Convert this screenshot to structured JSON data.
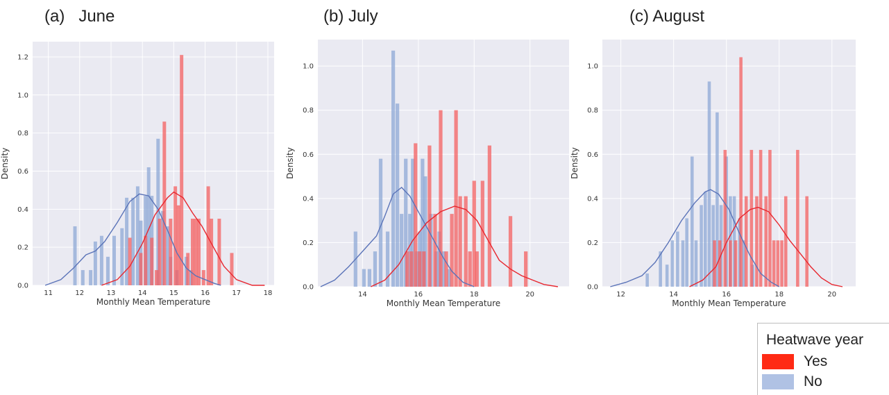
{
  "chart_data": [
    {
      "panel": "(a)   June",
      "type": "histogram-kde",
      "xlabel": "Monthly Mean Temperature",
      "ylabel": "Density",
      "xlim": [
        10.5,
        18.2
      ],
      "ylim": [
        0,
        1.28
      ],
      "xticks": [
        11,
        12,
        13,
        14,
        15,
        16,
        17,
        18
      ],
      "yticks": [
        0.0,
        0.2,
        0.4,
        0.6,
        0.8,
        1.0,
        1.2
      ],
      "bin_width": 0.11,
      "series": [
        {
          "name": "No",
          "bins": [
            [
              11.85,
              0.31
            ],
            [
              12.1,
              0.08
            ],
            [
              12.35,
              0.08
            ],
            [
              12.5,
              0.23
            ],
            [
              12.7,
              0.26
            ],
            [
              12.9,
              0.15
            ],
            [
              13.1,
              0.26
            ],
            [
              13.35,
              0.3
            ],
            [
              13.5,
              0.46
            ],
            [
              13.7,
              0.46
            ],
            [
              13.85,
              0.52
            ],
            [
              13.95,
              0.34
            ],
            [
              14.1,
              0.47
            ],
            [
              14.2,
              0.62
            ],
            [
              14.3,
              0.47
            ],
            [
              14.5,
              0.77
            ],
            [
              14.65,
              0.39
            ],
            [
              14.8,
              0.31
            ],
            [
              14.9,
              0.15
            ],
            [
              15.1,
              0.08
            ],
            [
              15.4,
              0.15
            ],
            [
              15.55,
              0.08
            ]
          ],
          "kde": [
            [
              10.9,
              0.0
            ],
            [
              11.4,
              0.03
            ],
            [
              11.8,
              0.09
            ],
            [
              12.2,
              0.16
            ],
            [
              12.5,
              0.18
            ],
            [
              12.8,
              0.23
            ],
            [
              13.2,
              0.33
            ],
            [
              13.6,
              0.44
            ],
            [
              13.9,
              0.48
            ],
            [
              14.2,
              0.47
            ],
            [
              14.5,
              0.4
            ],
            [
              14.8,
              0.29
            ],
            [
              15.1,
              0.17
            ],
            [
              15.4,
              0.09
            ],
            [
              15.7,
              0.05
            ],
            [
              16.0,
              0.03
            ],
            [
              16.3,
              0.01
            ],
            [
              16.5,
              0.0
            ]
          ]
        },
        {
          "name": "Yes",
          "bins": [
            [
              13.6,
              0.25
            ],
            [
              13.95,
              0.17
            ],
            [
              14.1,
              0.26
            ],
            [
              14.3,
              0.25
            ],
            [
              14.45,
              0.08
            ],
            [
              14.55,
              0.35
            ],
            [
              14.7,
              0.86
            ],
            [
              14.9,
              0.35
            ],
            [
              15.05,
              0.52
            ],
            [
              15.15,
              0.42
            ],
            [
              15.25,
              1.21
            ],
            [
              15.45,
              0.17
            ],
            [
              15.6,
              0.35
            ],
            [
              15.7,
              0.35
            ],
            [
              15.8,
              0.35
            ],
            [
              15.95,
              0.08
            ],
            [
              16.1,
              0.52
            ],
            [
              16.2,
              0.35
            ],
            [
              16.45,
              0.35
            ],
            [
              16.85,
              0.17
            ]
          ],
          "kde": [
            [
              12.7,
              0.0
            ],
            [
              13.2,
              0.03
            ],
            [
              13.6,
              0.1
            ],
            [
              14.0,
              0.22
            ],
            [
              14.4,
              0.37
            ],
            [
              14.8,
              0.46
            ],
            [
              15.0,
              0.49
            ],
            [
              15.3,
              0.46
            ],
            [
              15.6,
              0.38
            ],
            [
              15.9,
              0.31
            ],
            [
              16.2,
              0.22
            ],
            [
              16.6,
              0.1
            ],
            [
              17.0,
              0.03
            ],
            [
              17.5,
              0.0
            ],
            [
              17.9,
              0.0
            ]
          ]
        }
      ]
    },
    {
      "panel": "(b) July",
      "type": "histogram-kde",
      "xlabel": "Monthly Mean Temperature",
      "ylabel": "Density",
      "xlim": [
        12.4,
        21.4
      ],
      "ylim": [
        0,
        1.12
      ],
      "xticks": [
        14,
        16,
        18,
        20
      ],
      "yticks": [
        0.0,
        0.2,
        0.4,
        0.6,
        0.8,
        1.0
      ],
      "bin_width": 0.13,
      "series": [
        {
          "name": "No",
          "bins": [
            [
              13.75,
              0.25
            ],
            [
              14.05,
              0.08
            ],
            [
              14.25,
              0.08
            ],
            [
              14.45,
              0.16
            ],
            [
              14.65,
              0.58
            ],
            [
              14.9,
              0.25
            ],
            [
              15.1,
              1.07
            ],
            [
              15.25,
              0.83
            ],
            [
              15.4,
              0.33
            ],
            [
              15.55,
              0.58
            ],
            [
              15.7,
              0.33
            ],
            [
              15.8,
              0.58
            ],
            [
              15.95,
              0.16
            ],
            [
              16.05,
              0.25
            ],
            [
              16.15,
              0.58
            ],
            [
              16.25,
              0.5
            ],
            [
              16.45,
              0.33
            ],
            [
              16.65,
              0.16
            ],
            [
              16.75,
              0.25
            ],
            [
              16.9,
              0.16
            ],
            [
              17.1,
              0.08
            ]
          ],
          "kde": [
            [
              12.5,
              0.0
            ],
            [
              13.0,
              0.03
            ],
            [
              13.5,
              0.09
            ],
            [
              14.0,
              0.16
            ],
            [
              14.5,
              0.23
            ],
            [
              14.8,
              0.32
            ],
            [
              15.1,
              0.42
            ],
            [
              15.4,
              0.45
            ],
            [
              15.7,
              0.41
            ],
            [
              16.0,
              0.34
            ],
            [
              16.3,
              0.27
            ],
            [
              16.6,
              0.2
            ],
            [
              16.9,
              0.13
            ],
            [
              17.2,
              0.07
            ],
            [
              17.6,
              0.02
            ],
            [
              18.0,
              0.0
            ]
          ]
        },
        {
          "name": "Yes",
          "bins": [
            [
              15.6,
              0.16
            ],
            [
              15.75,
              0.16
            ],
            [
              15.9,
              0.65
            ],
            [
              16.05,
              0.16
            ],
            [
              16.2,
              0.16
            ],
            [
              16.4,
              0.64
            ],
            [
              16.6,
              0.33
            ],
            [
              16.8,
              0.8
            ],
            [
              17.0,
              0.16
            ],
            [
              17.2,
              0.33
            ],
            [
              17.35,
              0.8
            ],
            [
              17.5,
              0.41
            ],
            [
              17.7,
              0.41
            ],
            [
              17.85,
              0.16
            ],
            [
              18.0,
              0.48
            ],
            [
              18.1,
              0.16
            ],
            [
              18.3,
              0.48
            ],
            [
              18.55,
              0.64
            ],
            [
              19.3,
              0.32
            ],
            [
              19.85,
              0.16
            ]
          ],
          "kde": [
            [
              14.3,
              0.0
            ],
            [
              14.8,
              0.03
            ],
            [
              15.3,
              0.1
            ],
            [
              15.8,
              0.21
            ],
            [
              16.3,
              0.29
            ],
            [
              16.8,
              0.34
            ],
            [
              17.3,
              0.365
            ],
            [
              17.7,
              0.35
            ],
            [
              18.1,
              0.3
            ],
            [
              18.5,
              0.21
            ],
            [
              18.9,
              0.12
            ],
            [
              19.3,
              0.08
            ],
            [
              19.7,
              0.05
            ],
            [
              20.1,
              0.03
            ],
            [
              20.5,
              0.01
            ],
            [
              21.0,
              0.0
            ]
          ]
        }
      ]
    },
    {
      "panel": "(c) August",
      "type": "histogram-kde",
      "xlabel": "Monthly Mean Temperature",
      "ylabel": "Density",
      "xlim": [
        11.3,
        20.9
      ],
      "ylim": [
        0,
        1.12
      ],
      "xticks": [
        12,
        14,
        16,
        18,
        20
      ],
      "yticks": [
        0.0,
        0.2,
        0.4,
        0.6,
        0.8,
        1.0
      ],
      "bin_width": 0.12,
      "series": [
        {
          "name": "No",
          "bins": [
            [
              13.0,
              0.06
            ],
            [
              13.5,
              0.16
            ],
            [
              13.75,
              0.1
            ],
            [
              13.95,
              0.21
            ],
            [
              14.15,
              0.25
            ],
            [
              14.35,
              0.21
            ],
            [
              14.5,
              0.31
            ],
            [
              14.7,
              0.59
            ],
            [
              14.85,
              0.21
            ],
            [
              15.05,
              0.37
            ],
            [
              15.2,
              0.43
            ],
            [
              15.35,
              0.93
            ],
            [
              15.5,
              0.37
            ],
            [
              15.65,
              0.79
            ],
            [
              15.8,
              0.37
            ],
            [
              16.0,
              0.59
            ],
            [
              16.15,
              0.41
            ],
            [
              16.3,
              0.41
            ],
            [
              16.5,
              0.31
            ],
            [
              16.65,
              0.21
            ],
            [
              17.0,
              0.1
            ]
          ],
          "kde": [
            [
              11.6,
              0.0
            ],
            [
              12.2,
              0.02
            ],
            [
              12.8,
              0.05
            ],
            [
              13.3,
              0.11
            ],
            [
              13.8,
              0.2
            ],
            [
              14.3,
              0.3
            ],
            [
              14.8,
              0.38
            ],
            [
              15.2,
              0.43
            ],
            [
              15.4,
              0.44
            ],
            [
              15.7,
              0.42
            ],
            [
              16.1,
              0.35
            ],
            [
              16.5,
              0.24
            ],
            [
              16.9,
              0.14
            ],
            [
              17.3,
              0.06
            ],
            [
              17.7,
              0.02
            ],
            [
              18.0,
              0.0
            ]
          ]
        },
        {
          "name": "Yes",
          "bins": [
            [
              15.55,
              0.21
            ],
            [
              15.75,
              0.21
            ],
            [
              15.95,
              0.62
            ],
            [
              16.15,
              0.21
            ],
            [
              16.35,
              0.21
            ],
            [
              16.55,
              1.04
            ],
            [
              16.75,
              0.41
            ],
            [
              16.95,
              0.62
            ],
            [
              17.15,
              0.41
            ],
            [
              17.3,
              0.62
            ],
            [
              17.5,
              0.41
            ],
            [
              17.65,
              0.62
            ],
            [
              17.8,
              0.21
            ],
            [
              17.95,
              0.21
            ],
            [
              18.1,
              0.21
            ],
            [
              18.25,
              0.41
            ],
            [
              18.7,
              0.62
            ],
            [
              19.05,
              0.41
            ]
          ],
          "kde": [
            [
              14.6,
              0.0
            ],
            [
              15.1,
              0.03
            ],
            [
              15.6,
              0.09
            ],
            [
              16.0,
              0.2
            ],
            [
              16.5,
              0.31
            ],
            [
              16.9,
              0.35
            ],
            [
              17.2,
              0.36
            ],
            [
              17.6,
              0.34
            ],
            [
              18.0,
              0.28
            ],
            [
              18.4,
              0.21
            ],
            [
              18.8,
              0.15
            ],
            [
              19.2,
              0.09
            ],
            [
              19.6,
              0.04
            ],
            [
              20.0,
              0.01
            ],
            [
              20.4,
              0.0
            ]
          ]
        }
      ]
    }
  ],
  "colors": {
    "Yes": "#f46060",
    "No": "#8ea8d6",
    "yes_line": "#e8262e",
    "no_line": "#5a73b8",
    "plot_bg": "#eaeaf2",
    "grid": "#ffffff",
    "legend_yes_swatch": "#ff2a14",
    "legend_no_swatch": "#b0c2e4"
  },
  "legend": {
    "title": "Heatwave year",
    "items": [
      {
        "label": "Yes",
        "color": "#ff2a14"
      },
      {
        "label": "No",
        "color": "#b0c2e4"
      }
    ]
  }
}
